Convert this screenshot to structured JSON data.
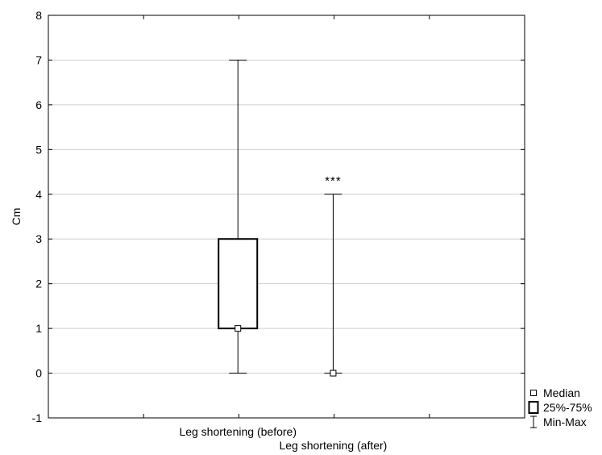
{
  "chart_data": {
    "type": "box",
    "title": "",
    "xlabel": "",
    "ylabel": "Cm",
    "ylim": [
      -1,
      8
    ],
    "yticks": [
      -1,
      0,
      1,
      2,
      3,
      4,
      5,
      6,
      7,
      8
    ],
    "grid": true,
    "legend_position": "bottom-right-outside",
    "categories": [
      "Leg shortening (before)",
      "Leg shortening (after)"
    ],
    "boxes": [
      {
        "category": "Leg shortening (before)",
        "min": 0,
        "q1": 1,
        "median": 1,
        "q3": 3,
        "max": 7,
        "annotation": ""
      },
      {
        "category": "Leg shortening (after)",
        "min": 0,
        "q1": 0,
        "median": 0,
        "q3": 0,
        "max": 4,
        "annotation": "***"
      }
    ],
    "legend": [
      {
        "symbol": "median",
        "label": "Median"
      },
      {
        "symbol": "box",
        "label": "25%-75%"
      },
      {
        "symbol": "whisker",
        "label": "Min-Max"
      }
    ]
  }
}
